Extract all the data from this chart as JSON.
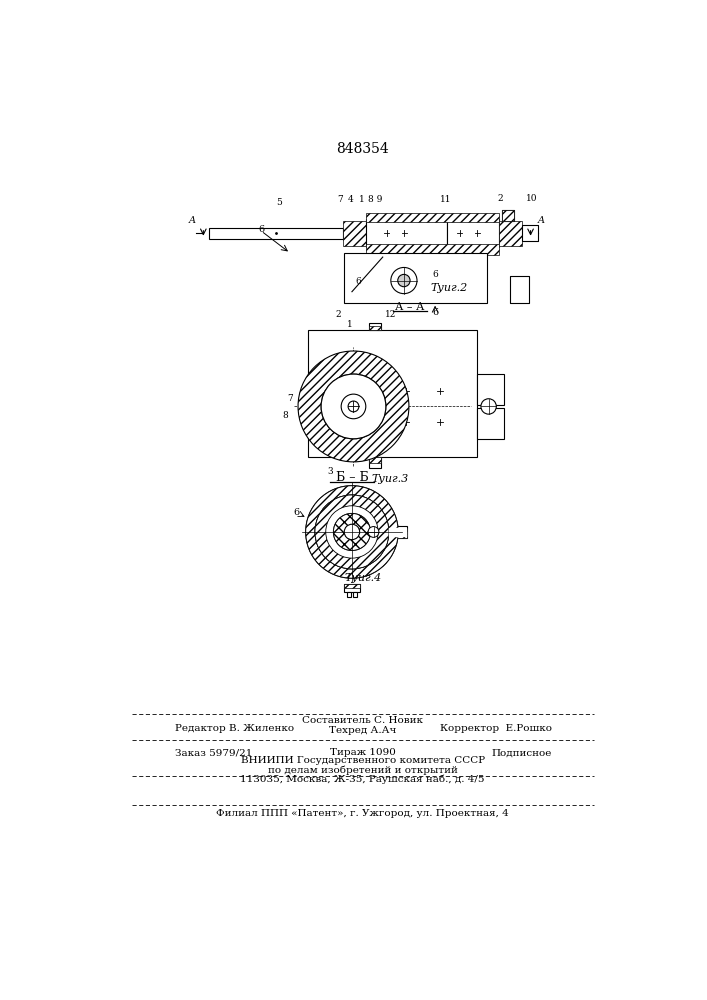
{
  "patent_number": "848354",
  "bg_color": "#ffffff",
  "fig2_caption": "Τуиг.2",
  "fig3_caption": "Τуиг.3",
  "fig4_caption": "Τуиг.4",
  "section_bb": "Б – Б",
  "section_aa": "А – А",
  "label_A_left": "A",
  "label_A_right": "A",
  "footer_line1_left": "Редактор В. Жиленко",
  "footer_line1_center": "Составитель С. Новик",
  "footer_line1_center2": "Техред А.Ач",
  "footer_line1_right": "Корректор  Е.Рошко",
  "footer_line2_left": "Заказ 5979/21",
  "footer_line2_center": "Тираж 1090",
  "footer_line2_right": "Подписное",
  "footer_line3": "ВНИИПИ Государственного комитета СССР",
  "footer_line4": "по делам изобретений и открытий",
  "footer_line5": "113035, Москва, Ж-35, Раушская наб., д. 4/5",
  "footer_line6": "Филиал ППП «Патент», г. Ужгород, ул. Проектная, 4"
}
